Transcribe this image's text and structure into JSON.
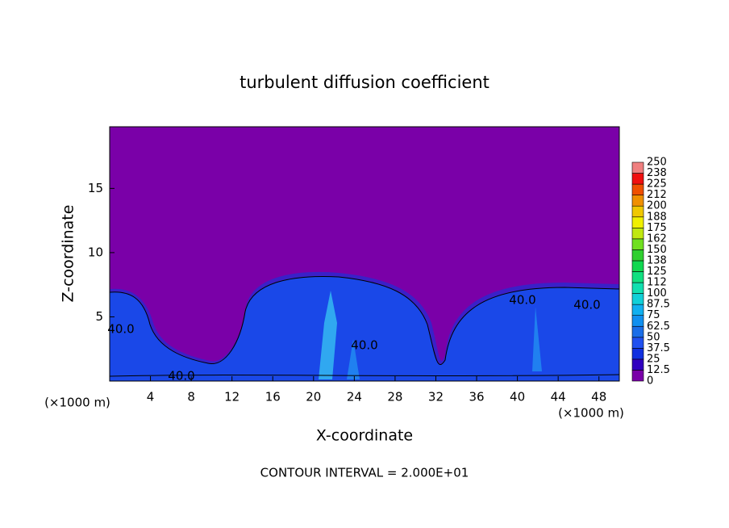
{
  "chart_data": {
    "type": "contour",
    "title": "turbulent diffusion coefficient",
    "x_label": "X-coordinate",
    "y_label": "Z-coordinate",
    "x_unit_left": "(×1000 m)",
    "x_unit_right": "(×1000 m)",
    "footer": "CONTOUR INTERVAL = 2.000E+01",
    "xlim": [
      0,
      50
    ],
    "xticks": [
      4,
      8,
      12,
      16,
      20,
      24,
      28,
      32,
      36,
      40,
      44,
      48
    ],
    "ylim": [
      0,
      19.8
    ],
    "yticks": [
      5,
      10,
      15
    ],
    "contour_labels": [
      "40.0",
      "40.0",
      "40.0",
      "40.0",
      "40.0"
    ],
    "colorbar": {
      "levels": [
        0,
        12.5,
        25,
        37.5,
        50,
        62.5,
        75,
        87.5,
        100,
        112,
        125,
        138,
        150,
        162,
        175,
        188,
        200,
        212,
        225,
        238,
        250
      ],
      "colors": [
        "#7a00a8",
        "#3000c0",
        "#1030e0",
        "#2050f0",
        "#1a6ee8",
        "#1090f0",
        "#10b0f0",
        "#10d0d8",
        "#10e0b0",
        "#10e080",
        "#10d850",
        "#30d030",
        "#70e020",
        "#c0e810",
        "#f0f000",
        "#f0c800",
        "#f09000",
        "#f05000",
        "#f01010",
        "#f08080"
      ]
    }
  }
}
